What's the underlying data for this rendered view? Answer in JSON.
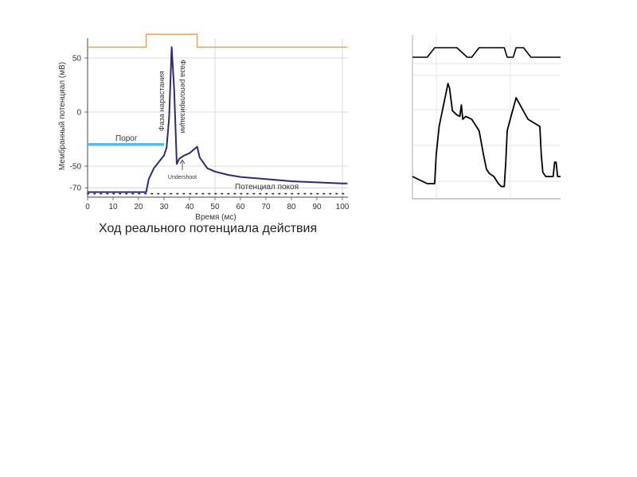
{
  "chart_data": [
    {
      "type": "line",
      "title": "Ход реального потенциала действия",
      "xlabel": "Время (мс)",
      "ylabel": "Мембранный потенциал (мВ)",
      "xlim": [
        0,
        102
      ],
      "ylim": [
        -78,
        65
      ],
      "x_ticks": [
        0,
        10,
        20,
        30,
        40,
        50,
        60,
        70,
        80,
        90,
        100
      ],
      "y_ticks": [
        50,
        0,
        -50,
        -70
      ],
      "grid": true,
      "series": [
        {
          "kind": "membrane-potential",
          "color": "#2b2d73",
          "x": [
            0,
            23,
            24,
            26,
            28,
            30,
            31,
            32,
            33,
            34,
            35,
            36,
            38,
            40,
            42,
            43,
            44,
            47,
            50,
            55,
            60,
            70,
            80,
            90,
            100,
            102
          ],
          "y": [
            -74,
            -74,
            -62,
            -52,
            -46,
            -40,
            -33,
            -5,
            60,
            20,
            -48,
            -43,
            -40,
            -38,
            -34,
            -32,
            -42,
            -52,
            -55,
            -58,
            -60,
            -62,
            -64,
            -65,
            -66,
            -66
          ]
        },
        {
          "kind": "stimulus-step",
          "color": "#f2a050",
          "x": [
            0,
            23,
            23,
            43,
            43,
            102
          ],
          "y": [
            60,
            60,
            72,
            72,
            60,
            60
          ]
        },
        {
          "kind": "resting-potential",
          "color": "#333333",
          "style": "dotted",
          "x": [
            0,
            102
          ],
          "y": [
            -74,
            -74
          ]
        },
        {
          "kind": "threshold",
          "color": "#5ab8e6",
          "x": [
            0,
            30
          ],
          "y": [
            -30,
            -30
          ]
        }
      ],
      "annotations": {
        "threshold": "Порог",
        "rising_phase": "Фаза нарастания",
        "repolarization_phase": "Фаза реполяризации",
        "undershoot": "Undershoot",
        "resting_potential": "Потенциал покоя"
      }
    },
    {
      "type": "line",
      "series": [
        {
          "kind": "stimulus-trace",
          "color": "#000000",
          "x": [
            0,
            5,
            10,
            15,
            20,
            30,
            37,
            40,
            45,
            50,
            55,
            60,
            62,
            64,
            66,
            68,
            70,
            75,
            80,
            90,
            100
          ],
          "y": [
            0.9,
            0.9,
            0.9,
            1.0,
            1.0,
            1.0,
            0.9,
            0.9,
            1.0,
            1.0,
            1.0,
            1.0,
            1.0,
            0.9,
            0.9,
            0.9,
            1.0,
            1.0,
            0.9,
            0.9,
            0.9
          ]
        },
        {
          "kind": "recorded-trace",
          "color": "#000000",
          "x": [
            0,
            10,
            15,
            16,
            18,
            20,
            22,
            24,
            25,
            27,
            30,
            32,
            33,
            34,
            36,
            40,
            45,
            48,
            50,
            52,
            55,
            58,
            60,
            62,
            63,
            64,
            66,
            70,
            78,
            86,
            87,
            88,
            90,
            92,
            95,
            96,
            97,
            98,
            100
          ],
          "y": [
            0.1,
            0.05,
            0.05,
            0.25,
            0.45,
            0.55,
            0.65,
            0.75,
            0.72,
            0.56,
            0.53,
            0.52,
            0.6,
            0.5,
            0.52,
            0.5,
            0.42,
            0.25,
            0.15,
            0.12,
            0.1,
            0.05,
            0.03,
            0.03,
            0.2,
            0.42,
            0.5,
            0.65,
            0.5,
            0.45,
            0.25,
            0.13,
            0.1,
            0.1,
            0.1,
            0.2,
            0.2,
            0.1,
            0.1
          ]
        }
      ]
    }
  ]
}
